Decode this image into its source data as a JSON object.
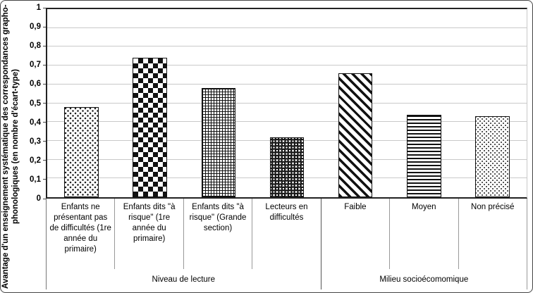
{
  "chart_data": {
    "type": "bar",
    "title": "",
    "ylabel_lines": [
      "Avantage d'un enseignement systématique des correspondances grapho-",
      "phonologiques (en nombre d'écart-type)"
    ],
    "ylim": [
      0,
      1
    ],
    "ytick_labels": [
      "0",
      "0,1",
      "0,2",
      "0,3",
      "0,4",
      "0,5",
      "0,6",
      "0,7",
      "0,8",
      "0,9",
      "1"
    ],
    "categories": [
      "Enfants ne présentant pas de difficultés (1re année du primaire)",
      "Enfants dits \"à risque\" (1re année du primaire)",
      "Enfants dits \"à risque\" (Grande section)",
      "Lecteurs en difficultés",
      "Faible",
      "Moyen",
      "Non précisé"
    ],
    "values": [
      0.48,
      0.74,
      0.58,
      0.32,
      0.66,
      0.44,
      0.43
    ],
    "patterns": [
      "dots-medium",
      "checkerboard",
      "small-grid",
      "balls",
      "diagonal-stripes",
      "horizontal-lines",
      "dots-fine"
    ],
    "groups": [
      {
        "label": "Niveau de lecture",
        "span": 4
      },
      {
        "label": "Milieu socioécomomique",
        "span": 3
      }
    ],
    "grid": true,
    "legend": false,
    "bar_color": "#000000",
    "background_color": "#ffffff",
    "gridline_color": "#c9c9c9"
  }
}
